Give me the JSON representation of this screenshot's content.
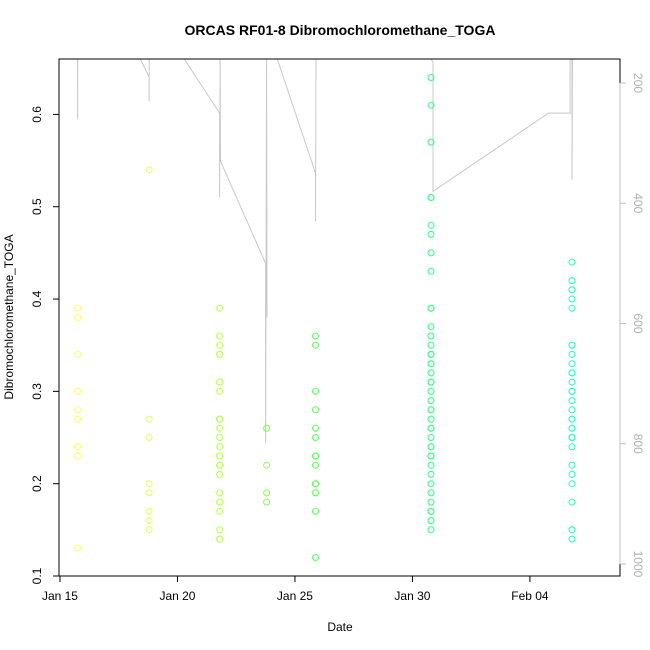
{
  "chart_data": {
    "type": "scatter",
    "title": "ORCAS RF01-8 Dibromochloromethane_TOGA",
    "xlabel": "Date",
    "ylabel": "Dibromochloromethane_TOGA",
    "x_axis": {
      "type": "date",
      "xlim": [
        "2016-01-14T23:00",
        "2016-02-07T20:00"
      ],
      "ticks": [
        {
          "date": "2016-01-15",
          "label": "Jan 15"
        },
        {
          "date": "2016-01-20",
          "label": "Jan 20"
        },
        {
          "date": "2016-01-25",
          "label": "Jan 25"
        },
        {
          "date": "2016-01-30",
          "label": "Jan 30"
        },
        {
          "date": "2016-02-04",
          "label": "Feb 04"
        }
      ]
    },
    "y_axis": {
      "ylim": [
        0.1,
        0.66
      ],
      "ticks": [
        0.1,
        0.2,
        0.3,
        0.4,
        0.5,
        0.6
      ],
      "tick_labels": [
        "0.1",
        "0.2",
        "0.3",
        "0.4",
        "0.5",
        "0.6"
      ]
    },
    "y2_axis": {
      "note_reversed": true,
      "ylim_top_bottom": [
        160,
        1020
      ],
      "ticks": [
        200,
        400,
        600,
        800,
        1000
      ],
      "tick_labels": [
        "200",
        "400",
        "600",
        "800",
        "1000"
      ],
      "color": "#c0c0c0"
    },
    "flights": [
      {
        "date": "2016-01-15T18:00",
        "color": "#ffff66",
        "values": [
          0.39,
          0.38,
          0.34,
          0.3,
          0.28,
          0.27,
          0.24,
          0.24,
          0.24,
          0.23,
          0.13
        ]
      },
      {
        "date": "2016-01-18T19:00",
        "color": "#e6ff5a",
        "values": [
          0.54,
          0.27,
          0.25,
          0.2,
          0.19,
          0.17,
          0.16,
          0.15
        ]
      },
      {
        "date": "2016-01-21T19:00",
        "color": "#b8ff4e",
        "values": [
          0.39,
          0.36,
          0.35,
          0.34,
          0.34,
          0.31,
          0.31,
          0.3,
          0.27,
          0.27,
          0.27,
          0.26,
          0.25,
          0.24,
          0.23,
          0.23,
          0.22,
          0.22,
          0.22,
          0.21,
          0.19,
          0.18,
          0.18,
          0.17,
          0.15,
          0.14,
          0.14
        ]
      },
      {
        "date": "2016-01-23T19:00",
        "color": "#88ff46",
        "values": [
          0.26,
          0.26,
          0.22,
          0.19,
          0.18
        ]
      },
      {
        "date": "2016-01-25T21:00",
        "color": "#55ff55",
        "values": [
          0.36,
          0.35,
          0.3,
          0.28,
          0.26,
          0.25,
          0.23,
          0.23,
          0.22,
          0.2,
          0.2,
          0.19,
          0.17,
          0.12
        ]
      },
      {
        "date": "2016-01-30T19:00",
        "color": "#2bff80",
        "values": [
          0.64,
          0.61,
          0.57,
          0.51,
          0.51,
          0.48,
          0.47,
          0.45,
          0.43,
          0.39,
          0.39,
          0.37,
          0.36,
          0.35,
          0.34,
          0.34,
          0.33,
          0.33,
          0.32,
          0.31,
          0.31,
          0.3,
          0.29,
          0.28,
          0.28,
          0.27,
          0.26,
          0.26,
          0.25,
          0.24,
          0.24,
          0.23,
          0.23,
          0.22,
          0.21,
          0.2,
          0.19,
          0.18,
          0.17,
          0.17,
          0.16,
          0.15
        ]
      },
      {
        "date": "2016-02-05T19:00",
        "color": "#22ffc0",
        "values": [
          0.44,
          0.42,
          0.41,
          0.41,
          0.4,
          0.39,
          0.35,
          0.35,
          0.34,
          0.33,
          0.32,
          0.32,
          0.31,
          0.3,
          0.3,
          0.29,
          0.28,
          0.27,
          0.27,
          0.26,
          0.26,
          0.25,
          0.25,
          0.25,
          0.24,
          0.22,
          0.21,
          0.2,
          0.18,
          0.15,
          0.15,
          0.14
        ]
      }
    ],
    "altitude_trace": {
      "color": "#c8c8c8",
      "comment_units": "secondary axis values (top of plot = 160)",
      "segments": [
        [
          [
            "2016-01-15T18:00",
            160
          ],
          [
            "2016-01-15T18:00",
            260
          ],
          [
            "2016-01-15T18:05",
            160
          ]
        ],
        [
          [
            "2016-01-18T10:00",
            160
          ],
          [
            "2016-01-18T19:00",
            190
          ],
          [
            "2016-01-18T19:00",
            230
          ],
          [
            "2016-01-18T19:05",
            160
          ]
        ],
        [
          [
            "2016-01-20T07:00",
            160
          ],
          [
            "2016-01-21T19:00",
            250
          ],
          [
            "2016-01-21T19:00",
            390
          ],
          [
            "2016-01-21T19:30",
            160
          ],
          [
            "2016-01-21T20:00",
            330
          ],
          [
            "2016-01-23T18:00",
            500
          ],
          [
            "2016-01-23T18:00",
            800
          ],
          [
            "2016-01-23T19:00",
            160
          ],
          [
            "2016-01-23T19:30",
            590
          ]
        ],
        [
          [
            "2016-01-24T06:00",
            160
          ],
          [
            "2016-01-25T21:00",
            350
          ],
          [
            "2016-01-25T21:00",
            430
          ],
          [
            "2016-01-25T21:30",
            160
          ]
        ],
        [
          [
            "2016-01-30T19:00",
            160
          ],
          [
            "2016-01-30T21:00",
            165
          ],
          [
            "2016-01-30T21:00",
            380
          ],
          [
            "2016-02-04T19:00",
            250
          ],
          [
            "2016-02-05T17:00",
            250
          ],
          [
            "2016-02-05T17:00",
            160
          ],
          [
            "2016-02-05T19:00",
            160
          ],
          [
            "2016-02-05T19:00",
            360
          ],
          [
            "2016-02-05T19:30",
            160
          ]
        ]
      ]
    }
  }
}
